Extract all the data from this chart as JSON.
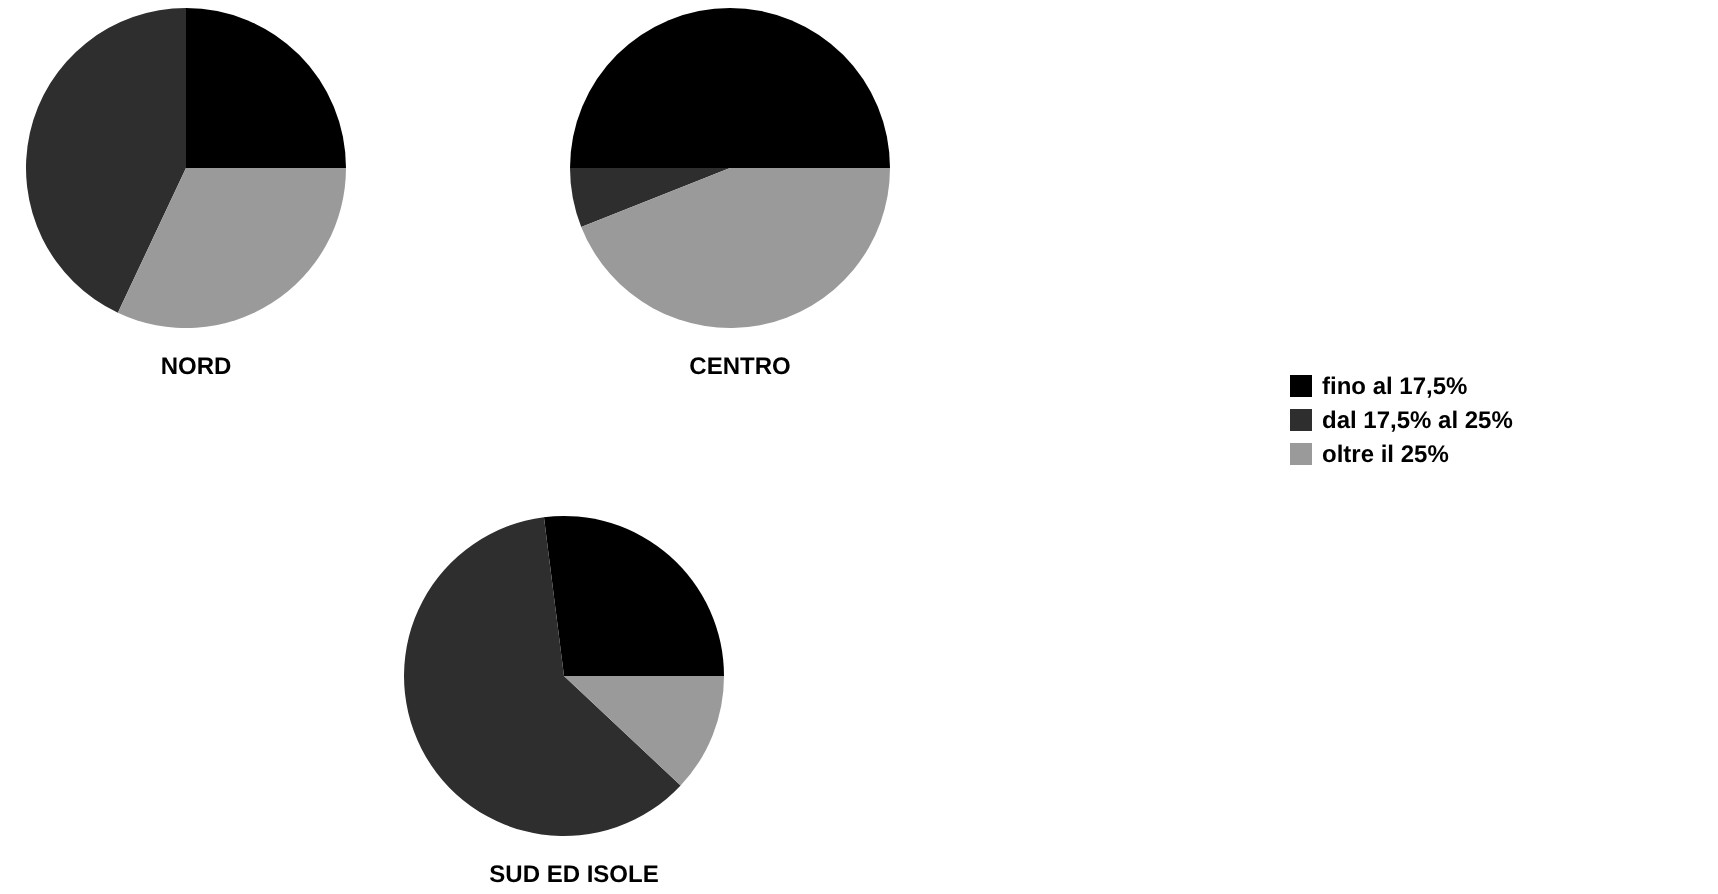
{
  "chart_data": {
    "type": "pie",
    "categories": [
      "fino al 17,5%",
      "dal 17,5% al 25%",
      "oltre il 25%"
    ],
    "colors": [
      "#000000",
      "#2e2e2e",
      "#9a9a9a"
    ],
    "legend": "right",
    "series": [
      {
        "name": "NORD",
        "values": [
          25,
          43,
          32
        ]
      },
      {
        "name": "CENTRO",
        "values": [
          50,
          6,
          44
        ]
      },
      {
        "name": "SUD ED ISOLE",
        "values": [
          27,
          61,
          12
        ]
      }
    ]
  }
}
